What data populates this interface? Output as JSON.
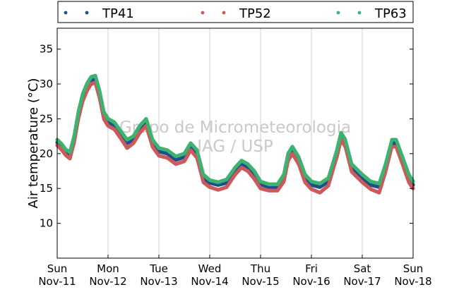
{
  "chart_data": {
    "type": "scatter",
    "title": "",
    "xlabel": "",
    "ylabel": "Air temperature (°C)",
    "ylim": [
      5,
      38
    ],
    "xlim": [
      "2012-11-11 00:00",
      "2012-11-18 00:00"
    ],
    "x_ticks": [
      {
        "date": "2012-11-11",
        "day": "Sun",
        "label": "Nov-11"
      },
      {
        "date": "2012-11-12",
        "day": "Mon",
        "label": "Nov-12"
      },
      {
        "date": "2012-11-13",
        "day": "Tue",
        "label": "Nov-13"
      },
      {
        "date": "2012-11-14",
        "day": "Wed",
        "label": "Nov-14"
      },
      {
        "date": "2012-11-15",
        "day": "Thu",
        "label": "Nov-15"
      },
      {
        "date": "2012-11-16",
        "day": "Fri",
        "label": "Nov-16"
      },
      {
        "date": "2012-11-17",
        "day": "Sat",
        "label": "Nov-17"
      },
      {
        "date": "2012-11-18",
        "day": "Sun",
        "label": "Nov-18"
      }
    ],
    "y_ticks": [
      10,
      15,
      20,
      25,
      30,
      35
    ],
    "grid": "vertical",
    "legend_position": "top",
    "watermark": [
      "Grupo de Micrometeorologia",
      "IAG / USP"
    ],
    "series": [
      {
        "name": "TP41",
        "color": "#1f4e8c",
        "x": [
          "2012-11-11 00:00",
          "2012-11-11 02:00",
          "2012-11-11 04:00",
          "2012-11-11 06:00",
          "2012-11-11 08:00",
          "2012-11-11 10:00",
          "2012-11-11 12:00",
          "2012-11-11 14:00",
          "2012-11-11 16:00",
          "2012-11-11 18:00",
          "2012-11-11 20:00",
          "2012-11-11 22:00",
          "2012-11-12 00:00",
          "2012-11-12 03:00",
          "2012-11-12 06:00",
          "2012-11-12 09:00",
          "2012-11-12 12:00",
          "2012-11-12 15:00",
          "2012-11-12 18:00",
          "2012-11-12 21:00",
          "2012-11-13 00:00",
          "2012-11-13 04:00",
          "2012-11-13 08:00",
          "2012-11-13 12:00",
          "2012-11-13 15:00",
          "2012-11-13 18:00",
          "2012-11-13 21:00",
          "2012-11-14 00:00",
          "2012-11-14 04:00",
          "2012-11-14 08:00",
          "2012-11-14 12:00",
          "2012-11-14 15:00",
          "2012-11-14 18:00",
          "2012-11-14 21:00",
          "2012-11-15 00:00",
          "2012-11-15 04:00",
          "2012-11-15 08:00",
          "2012-11-15 11:00",
          "2012-11-15 13:00",
          "2012-11-15 15:00",
          "2012-11-15 18:00",
          "2012-11-15 21:00",
          "2012-11-16 00:00",
          "2012-11-16 04:00",
          "2012-11-16 08:00",
          "2012-11-16 12:00",
          "2012-11-16 14:00",
          "2012-11-16 16:00",
          "2012-11-16 19:00",
          "2012-11-17 00:00",
          "2012-11-17 04:00",
          "2012-11-17 08:00",
          "2012-11-17 11:00",
          "2012-11-17 14:00",
          "2012-11-17 16:00",
          "2012-11-17 19:00",
          "2012-11-17 22:00",
          "2012-11-18 00:00"
        ],
        "y": [
          21.6,
          21.0,
          20.2,
          19.8,
          22.0,
          25.5,
          28.0,
          29.5,
          30.5,
          30.8,
          28.5,
          25.5,
          24.6,
          24.0,
          22.8,
          21.5,
          22.0,
          23.5,
          24.5,
          21.5,
          20.3,
          20.0,
          19.1,
          19.5,
          21.0,
          20.0,
          16.5,
          15.8,
          15.5,
          15.8,
          17.5,
          18.5,
          18.0,
          17.0,
          15.6,
          15.2,
          15.2,
          16.5,
          19.5,
          20.5,
          19.0,
          16.5,
          15.5,
          15.2,
          16.0,
          20.0,
          22.5,
          21.5,
          18.0,
          16.5,
          15.5,
          15.2,
          18.0,
          21.5,
          21.5,
          19.0,
          16.5,
          15.5
        ]
      },
      {
        "name": "TP52",
        "color": "#cc5a5a",
        "x": [
          "2012-11-11 00:00",
          "2012-11-11 02:00",
          "2012-11-11 04:00",
          "2012-11-11 06:00",
          "2012-11-11 08:00",
          "2012-11-11 10:00",
          "2012-11-11 12:00",
          "2012-11-11 14:00",
          "2012-11-11 16:00",
          "2012-11-11 18:00",
          "2012-11-11 20:00",
          "2012-11-11 22:00",
          "2012-11-12 00:00",
          "2012-11-12 03:00",
          "2012-11-12 06:00",
          "2012-11-12 09:00",
          "2012-11-12 12:00",
          "2012-11-12 15:00",
          "2012-11-12 18:00",
          "2012-11-12 21:00",
          "2012-11-13 00:00",
          "2012-11-13 04:00",
          "2012-11-13 08:00",
          "2012-11-13 12:00",
          "2012-11-13 15:00",
          "2012-11-13 18:00",
          "2012-11-13 21:00",
          "2012-11-14 00:00",
          "2012-11-14 04:00",
          "2012-11-14 08:00",
          "2012-11-14 12:00",
          "2012-11-14 15:00",
          "2012-11-14 18:00",
          "2012-11-14 21:00",
          "2012-11-15 00:00",
          "2012-11-15 04:00",
          "2012-11-15 08:00",
          "2012-11-15 11:00",
          "2012-11-15 13:00",
          "2012-11-15 15:00",
          "2012-11-15 18:00",
          "2012-11-15 21:00",
          "2012-11-16 00:00",
          "2012-11-16 04:00",
          "2012-11-16 08:00",
          "2012-11-16 12:00",
          "2012-11-16 14:00",
          "2012-11-16 16:00",
          "2012-11-16 19:00",
          "2012-11-17 00:00",
          "2012-11-17 04:00",
          "2012-11-17 08:00",
          "2012-11-17 11:00",
          "2012-11-17 14:00",
          "2012-11-17 16:00",
          "2012-11-17 19:00",
          "2012-11-17 22:00",
          "2012-11-18 00:00"
        ],
        "y": [
          21.2,
          20.6,
          19.8,
          19.3,
          21.6,
          25.0,
          27.5,
          29.0,
          30.0,
          30.2,
          28.0,
          25.0,
          24.0,
          23.5,
          22.2,
          20.8,
          21.5,
          23.0,
          24.0,
          21.0,
          19.7,
          19.4,
          18.5,
          18.9,
          20.5,
          19.4,
          15.9,
          15.2,
          14.8,
          15.2,
          17.0,
          18.0,
          17.5,
          16.4,
          15.0,
          14.7,
          14.7,
          16.0,
          19.0,
          20.0,
          18.5,
          15.9,
          14.9,
          14.4,
          15.4,
          19.5,
          22.0,
          21.0,
          17.4,
          15.9,
          14.9,
          14.4,
          17.4,
          21.0,
          21.0,
          18.5,
          15.9,
          15.0
        ]
      },
      {
        "name": "TP63",
        "color": "#3cb371",
        "x": [
          "2012-11-11 00:00",
          "2012-11-11 02:00",
          "2012-11-11 04:00",
          "2012-11-11 06:00",
          "2012-11-11 08:00",
          "2012-11-11 10:00",
          "2012-11-11 12:00",
          "2012-11-11 14:00",
          "2012-11-11 16:00",
          "2012-11-11 18:00",
          "2012-11-11 20:00",
          "2012-11-11 22:00",
          "2012-11-12 00:00",
          "2012-11-12 03:00",
          "2012-11-12 06:00",
          "2012-11-12 09:00",
          "2012-11-12 12:00",
          "2012-11-12 15:00",
          "2012-11-12 18:00",
          "2012-11-12 21:00",
          "2012-11-13 00:00",
          "2012-11-13 04:00",
          "2012-11-13 08:00",
          "2012-11-13 12:00",
          "2012-11-13 15:00",
          "2012-11-13 18:00",
          "2012-11-13 21:00",
          "2012-11-14 00:00",
          "2012-11-14 04:00",
          "2012-11-14 08:00",
          "2012-11-14 12:00",
          "2012-11-14 15:00",
          "2012-11-14 18:00",
          "2012-11-14 21:00",
          "2012-11-15 00:00",
          "2012-11-15 04:00",
          "2012-11-15 08:00",
          "2012-11-15 11:00",
          "2012-11-15 13:00",
          "2012-11-15 15:00",
          "2012-11-15 18:00",
          "2012-11-15 21:00",
          "2012-11-16 00:00",
          "2012-11-16 04:00",
          "2012-11-16 08:00",
          "2012-11-16 12:00",
          "2012-11-16 14:00",
          "2012-11-16 16:00",
          "2012-11-16 19:00",
          "2012-11-17 00:00",
          "2012-11-17 04:00",
          "2012-11-17 08:00",
          "2012-11-17 11:00",
          "2012-11-17 14:00",
          "2012-11-17 16:00",
          "2012-11-17 19:00",
          "2012-11-17 22:00",
          "2012-11-18 00:00"
        ],
        "y": [
          22.0,
          21.4,
          20.6,
          20.2,
          22.5,
          26.0,
          28.5,
          30.0,
          31.0,
          31.2,
          29.0,
          26.0,
          25.0,
          24.5,
          23.2,
          22.0,
          22.5,
          24.0,
          25.0,
          22.0,
          20.8,
          20.5,
          19.6,
          20.0,
          21.5,
          20.5,
          17.0,
          16.2,
          15.9,
          16.3,
          18.0,
          19.0,
          18.5,
          17.5,
          16.0,
          15.6,
          15.6,
          17.0,
          20.0,
          21.0,
          19.5,
          17.0,
          16.0,
          15.7,
          16.5,
          20.5,
          23.0,
          22.0,
          18.5,
          17.0,
          16.0,
          15.7,
          18.5,
          22.0,
          22.0,
          19.5,
          17.0,
          16.0
        ]
      }
    ]
  }
}
